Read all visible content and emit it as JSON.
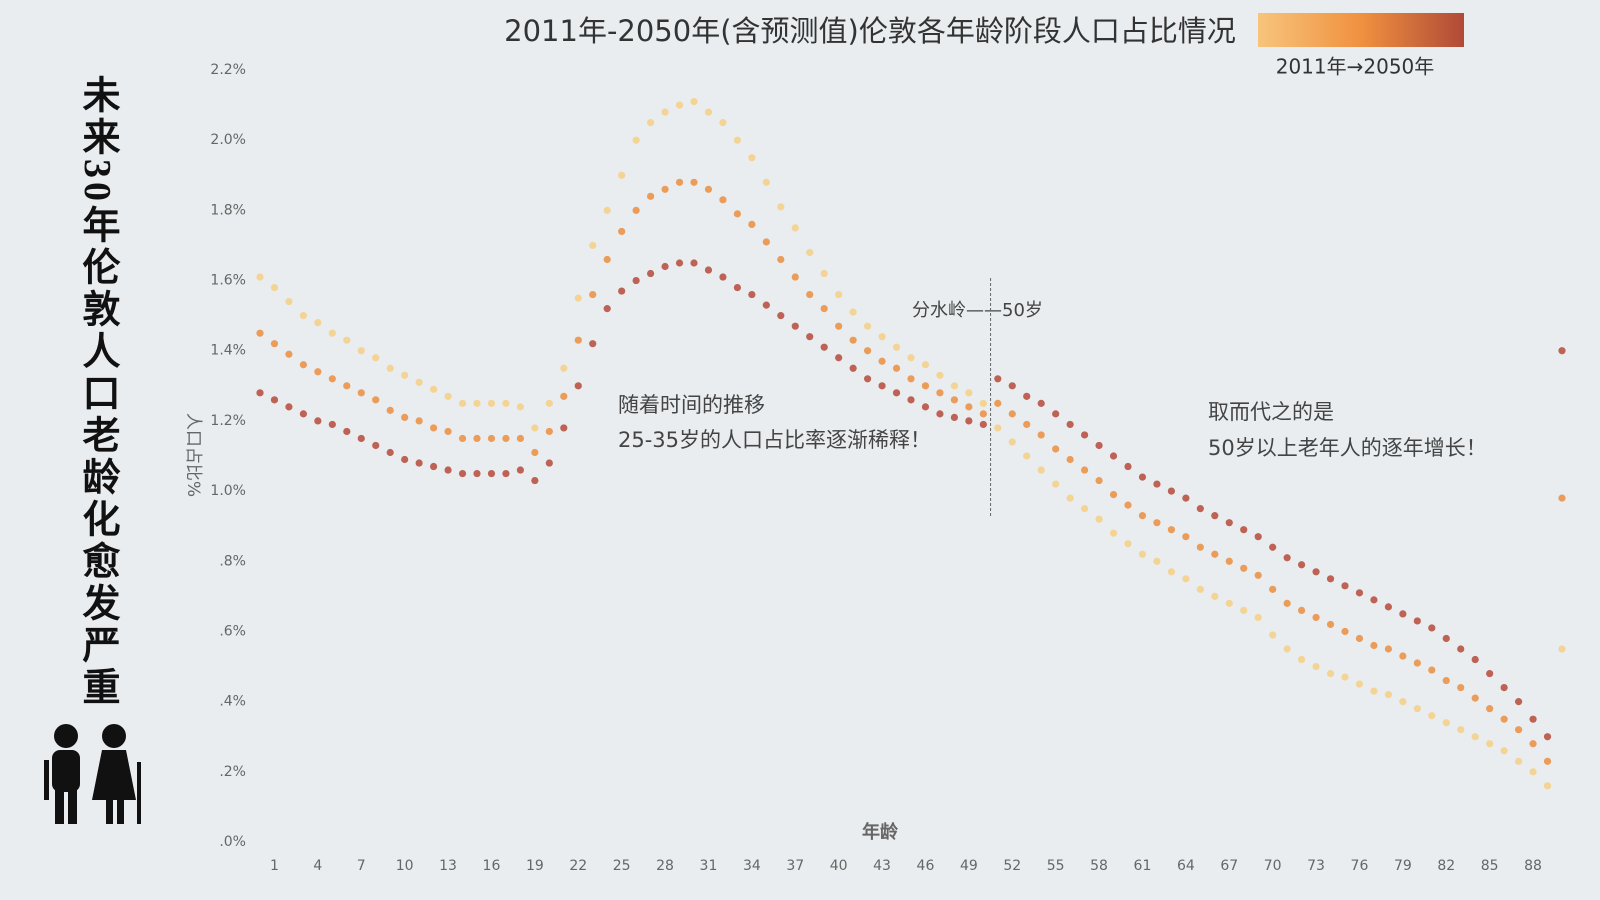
{
  "chart_data": {
    "type": "scatter",
    "title": "2011年-2050年(含预测值)伦敦各年龄阶段人口占比情况",
    "side_title": "未来30年伦敦人口老龄化愈发严重",
    "legend_label": "2011年→2050年",
    "legend_colors": [
      "#f7c47c",
      "#f0913f",
      "#b04a38"
    ],
    "x_label": "年龄",
    "y_label": "人口占比%",
    "annotations": [
      "分水岭——50岁",
      "随着时间的推移",
      "25-35岁的人口占比率逐渐稀释！",
      "取而代之的是",
      "50岁以上老年人的逐年增长！"
    ],
    "vline_x": 50.5,
    "x": [
      0,
      1,
      2,
      3,
      4,
      5,
      6,
      7,
      8,
      9,
      10,
      11,
      12,
      13,
      14,
      15,
      16,
      17,
      18,
      19,
      20,
      21,
      22,
      23,
      24,
      25,
      26,
      27,
      28,
      29,
      30,
      31,
      32,
      33,
      34,
      35,
      36,
      37,
      38,
      39,
      40,
      41,
      42,
      43,
      44,
      45,
      46,
      47,
      48,
      49,
      50,
      51,
      52,
      53,
      54,
      55,
      56,
      57,
      58,
      59,
      60,
      61,
      62,
      63,
      64,
      65,
      66,
      67,
      68,
      69,
      70,
      71,
      72,
      73,
      74,
      75,
      76,
      77,
      78,
      79,
      80,
      81,
      82,
      83,
      84,
      85,
      86,
      87,
      88,
      89,
      90
    ],
    "series": [
      {
        "color": "#f5cf85",
        "values": [
          1.61,
          1.58,
          1.54,
          1.5,
          1.48,
          1.45,
          1.43,
          1.4,
          1.38,
          1.35,
          1.33,
          1.31,
          1.29,
          1.27,
          1.25,
          1.25,
          1.25,
          1.25,
          1.24,
          1.18,
          1.25,
          1.35,
          1.55,
          1.7,
          1.8,
          1.9,
          2.0,
          2.05,
          2.08,
          2.1,
          2.11,
          2.08,
          2.05,
          2.0,
          1.95,
          1.88,
          1.81,
          1.75,
          1.68,
          1.62,
          1.56,
          1.51,
          1.47,
          1.44,
          1.41,
          1.38,
          1.36,
          1.33,
          1.3,
          1.28,
          1.25,
          1.18,
          1.14,
          1.1,
          1.06,
          1.02,
          0.98,
          0.95,
          0.92,
          0.88,
          0.85,
          0.82,
          0.8,
          0.77,
          0.75,
          0.72,
          0.7,
          0.68,
          0.66,
          0.64,
          0.59,
          0.55,
          0.52,
          0.5,
          0.48,
          0.47,
          0.45,
          0.43,
          0.42,
          0.4,
          0.38,
          0.36,
          0.34,
          0.32,
          0.3,
          0.28,
          0.26,
          0.23,
          0.2,
          0.16,
          0.55
        ]
      },
      {
        "color": "#ec8d3e",
        "values": [
          1.45,
          1.42,
          1.39,
          1.36,
          1.34,
          1.32,
          1.3,
          1.28,
          1.26,
          1.23,
          1.21,
          1.2,
          1.18,
          1.17,
          1.15,
          1.15,
          1.15,
          1.15,
          1.15,
          1.11,
          1.17,
          1.27,
          1.43,
          1.56,
          1.66,
          1.74,
          1.8,
          1.84,
          1.86,
          1.88,
          1.88,
          1.86,
          1.83,
          1.79,
          1.76,
          1.71,
          1.66,
          1.61,
          1.56,
          1.52,
          1.47,
          1.43,
          1.4,
          1.37,
          1.35,
          1.32,
          1.3,
          1.28,
          1.26,
          1.24,
          1.22,
          1.25,
          1.22,
          1.19,
          1.16,
          1.12,
          1.09,
          1.06,
          1.03,
          0.99,
          0.96,
          0.93,
          0.91,
          0.89,
          0.87,
          0.84,
          0.82,
          0.8,
          0.78,
          0.76,
          0.72,
          0.68,
          0.66,
          0.64,
          0.62,
          0.6,
          0.58,
          0.56,
          0.55,
          0.53,
          0.51,
          0.49,
          0.46,
          0.44,
          0.41,
          0.38,
          0.35,
          0.32,
          0.28,
          0.23,
          0.98
        ]
      },
      {
        "color": "#b5493a",
        "values": [
          1.28,
          1.26,
          1.24,
          1.22,
          1.2,
          1.19,
          1.17,
          1.15,
          1.13,
          1.11,
          1.09,
          1.08,
          1.07,
          1.06,
          1.05,
          1.05,
          1.05,
          1.05,
          1.06,
          1.03,
          1.08,
          1.18,
          1.3,
          1.42,
          1.52,
          1.57,
          1.6,
          1.62,
          1.64,
          1.65,
          1.65,
          1.63,
          1.61,
          1.58,
          1.56,
          1.53,
          1.5,
          1.47,
          1.44,
          1.41,
          1.38,
          1.35,
          1.32,
          1.3,
          1.28,
          1.26,
          1.24,
          1.22,
          1.21,
          1.2,
          1.19,
          1.32,
          1.3,
          1.27,
          1.25,
          1.22,
          1.19,
          1.16,
          1.13,
          1.1,
          1.07,
          1.04,
          1.02,
          1.0,
          0.98,
          0.95,
          0.93,
          0.91,
          0.89,
          0.87,
          0.84,
          0.81,
          0.79,
          0.77,
          0.75,
          0.73,
          0.71,
          0.69,
          0.67,
          0.65,
          0.63,
          0.61,
          0.58,
          0.55,
          0.52,
          0.48,
          0.44,
          0.4,
          0.35,
          0.3,
          1.4
        ]
      }
    ],
    "xlim": [
      0,
      90
    ],
    "xticks": [
      1,
      4,
      7,
      10,
      13,
      16,
      19,
      22,
      25,
      28,
      31,
      34,
      37,
      40,
      43,
      46,
      49,
      52,
      55,
      58,
      61,
      64,
      67,
      70,
      73,
      76,
      79,
      82,
      85,
      88
    ],
    "ylim": [
      0,
      2.2
    ],
    "yticks": [
      {
        "value": 0,
        "label": ".0%"
      },
      {
        "value": 0.2,
        "label": ".2%"
      },
      {
        "value": 0.4,
        "label": ".4%"
      },
      {
        "value": 0.6,
        "label": ".6%"
      },
      {
        "value": 0.8,
        "label": ".8%"
      },
      {
        "value": 1.0,
        "label": "1.0%"
      },
      {
        "value": 1.2,
        "label": "1.2%"
      },
      {
        "value": 1.4,
        "label": "1.4%"
      },
      {
        "value": 1.6,
        "label": "1.6%"
      },
      {
        "value": 1.8,
        "label": "1.8%"
      },
      {
        "value": 2.0,
        "label": "2.0%"
      },
      {
        "value": 2.2,
        "label": "2.2%"
      }
    ]
  }
}
